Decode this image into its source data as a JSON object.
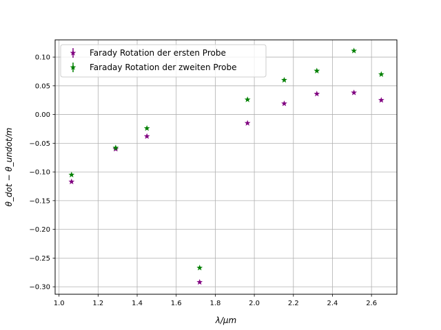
{
  "chart_data": {
    "type": "scatter",
    "title": "",
    "xlabel": "λ/µm",
    "ylabel": "θ_dot − θ_undot/m",
    "xlim": [
      0.98,
      2.73
    ],
    "ylim": [
      -0.313,
      0.13
    ],
    "grid": true,
    "legend_position": "top-left",
    "x_ticks": [
      "1.0",
      "1.2",
      "1.4",
      "1.6",
      "1.8",
      "2.0",
      "2.2",
      "2.4",
      "2.6"
    ],
    "y_ticks": [
      "0.10",
      "0.05",
      "0.00",
      "−0.05",
      "−0.10",
      "−0.15",
      "−0.20",
      "−0.25",
      "−0.30"
    ],
    "series": [
      {
        "name": "Farady Rotation der ersten Probe",
        "color": "#800080",
        "marker": "star",
        "x": [
          1.064,
          1.29,
          1.45,
          1.72,
          1.965,
          2.153,
          2.32,
          2.51,
          2.65
        ],
        "y": [
          -0.117,
          -0.06,
          -0.038,
          -0.292,
          -0.015,
          0.019,
          0.036,
          0.038,
          0.025
        ]
      },
      {
        "name": "Faraday Rotation der zweiten Probe",
        "color": "#008000",
        "marker": "star",
        "x": [
          1.064,
          1.29,
          1.45,
          1.72,
          1.965,
          2.153,
          2.32,
          2.51,
          2.65
        ],
        "y": [
          -0.105,
          -0.058,
          -0.024,
          -0.267,
          0.026,
          0.06,
          0.076,
          0.111,
          0.07
        ]
      }
    ]
  }
}
